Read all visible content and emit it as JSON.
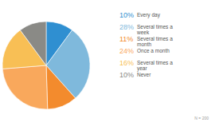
{
  "chart_data": {
    "type": "pie",
    "categories": [
      "Every day",
      "Several times a week",
      "Several times a month",
      "Once a month",
      "Several times a year",
      "Never"
    ],
    "values": [
      10,
      28,
      11,
      24,
      16,
      10
    ],
    "value_labels": [
      "10%",
      "28%",
      "11%",
      "24%",
      "16%",
      "10%"
    ],
    "colors": [
      "#2f8fd1",
      "#7fb9dc",
      "#f38b2d",
      "#f9a85c",
      "#f8bf55",
      "#8a8a86"
    ],
    "legend": "right",
    "annotations": [
      "N = 200"
    ]
  }
}
